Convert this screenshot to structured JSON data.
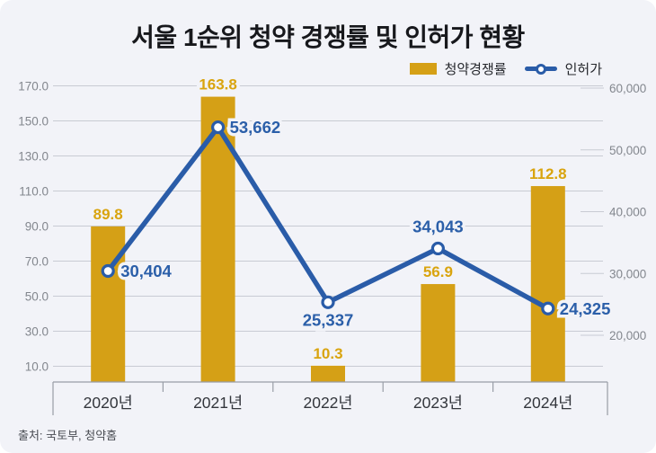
{
  "title": "서울 1순위 청약 경쟁률 및 인허가 현황",
  "source": "출처: 국토부, 청약홈",
  "legend": [
    {
      "label": "청약경쟁률",
      "type": "bar"
    },
    {
      "label": "인허가",
      "type": "line"
    }
  ],
  "colors": {
    "background": "#F2F3F8",
    "bar": "#D5A016",
    "bar_label": "#D9A40E",
    "line": "#2A5CA8",
    "line_label": "#2B5FA9",
    "grid": "#C8CBD3",
    "axis": "#989DA6",
    "tick_label": "#83878E",
    "category_label": "#33363C",
    "title": "#17181C",
    "source": "#4A4D53"
  },
  "chart_data": {
    "type": "bar+line combo",
    "title": "서울 1순위 청약 경쟁률 및 인허가 현황",
    "categories": [
      "2020년",
      "2021년",
      "2022년",
      "2023년",
      "2024년"
    ],
    "series": [
      {
        "name": "청약경쟁률",
        "type": "bar",
        "axis": "left",
        "values": [
          89.8,
          163.8,
          10.3,
          56.9,
          112.8
        ],
        "labels": [
          "89.8",
          "163.8",
          "10.3",
          "56.9",
          "112.8"
        ]
      },
      {
        "name": "인허가",
        "type": "line",
        "axis": "right",
        "values": [
          30404,
          53662,
          25337,
          34043,
          24325
        ],
        "labels": [
          "30,404",
          "53,662",
          "25,337",
          "34,043",
          "24,325"
        ]
      }
    ],
    "left_axis": {
      "ticks": [
        170.0,
        150.0,
        130.0,
        110.0,
        90.0,
        70.0,
        50.0,
        30.0,
        10.0
      ],
      "tick_labels": [
        "170.0",
        "150.0",
        "130.0",
        "110.0",
        "90.0",
        "70.0",
        "50.0",
        "30.0",
        "10.0"
      ],
      "min": 0,
      "max": 170
    },
    "right_axis": {
      "ticks": [
        60000,
        50000,
        40000,
        30000,
        20000
      ],
      "tick_labels": [
        "60,000",
        "50,000",
        "40,000",
        "30,000",
        "20,000"
      ],
      "min": 20000,
      "max": 60000
    },
    "grid": true,
    "legend_position": "top-right"
  }
}
